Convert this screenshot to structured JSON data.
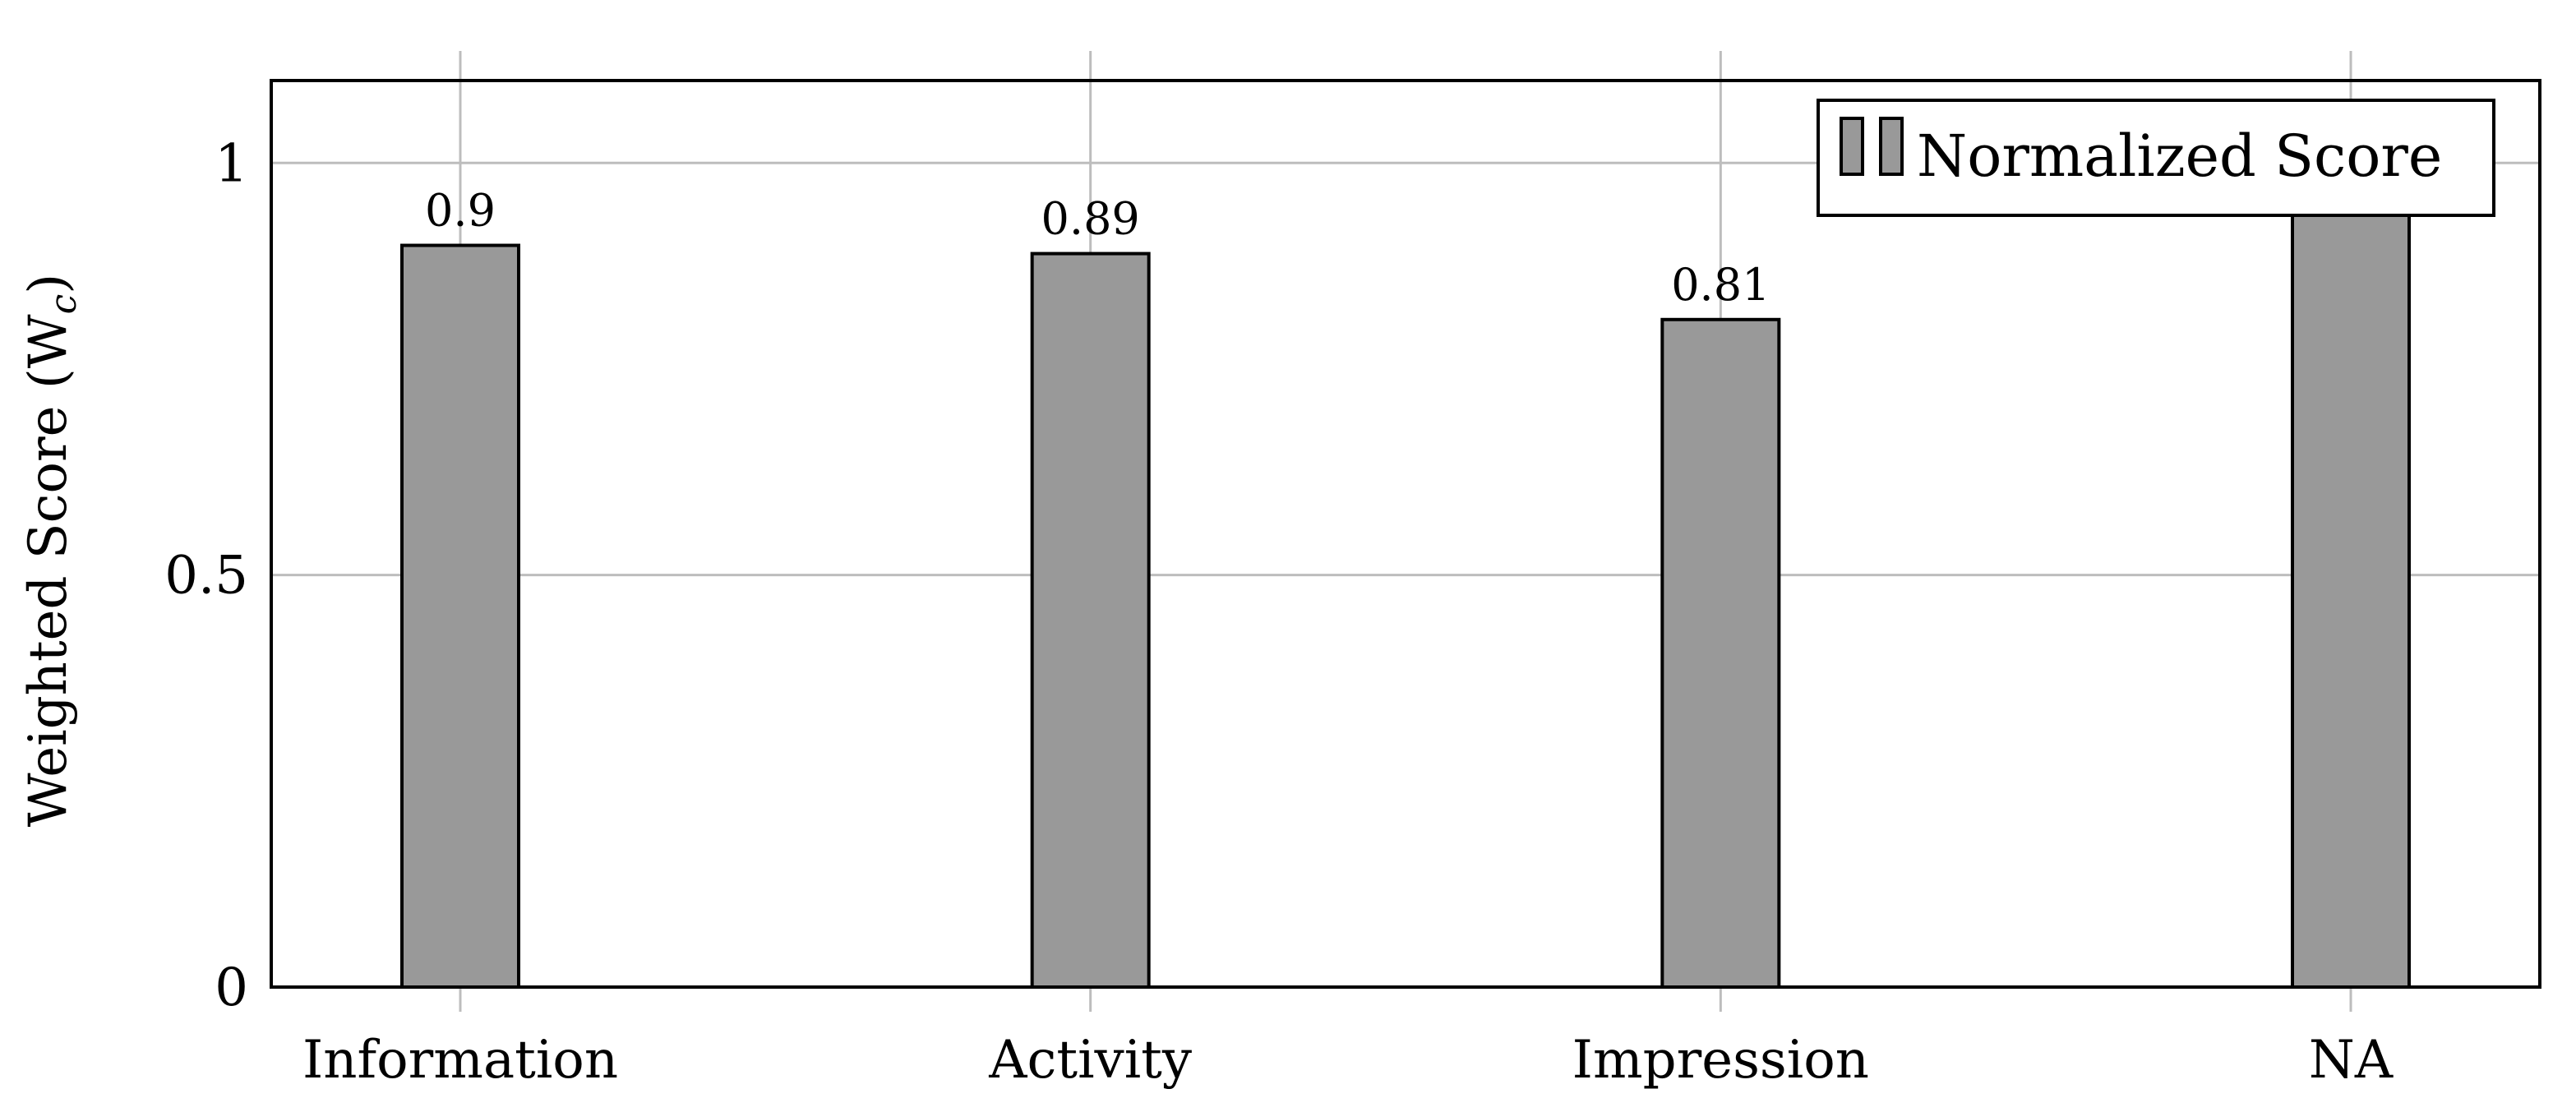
{
  "chart_data": {
    "type": "bar",
    "categories": [
      "Information",
      "Activity",
      "Impression",
      "NA"
    ],
    "series": [
      {
        "name": "Normalized Score",
        "values": [
          0.9,
          0.89,
          0.81,
          0.95
        ],
        "color": "#999999"
      }
    ],
    "data_labels": [
      "0.9",
      "0.89",
      "0.81",
      ""
    ],
    "title": "",
    "xlabel": "",
    "ylabel": "Weighted Score (W",
    "ylabel_sub": "c",
    "ylabel_close": ")",
    "ylim": [
      0,
      1.1
    ],
    "yticks": [
      0,
      0.5,
      1
    ],
    "ytick_labels": [
      "0",
      "0.5",
      "1"
    ],
    "grid": true,
    "legend": {
      "position": "top-right",
      "label": "Normalized Score"
    }
  }
}
